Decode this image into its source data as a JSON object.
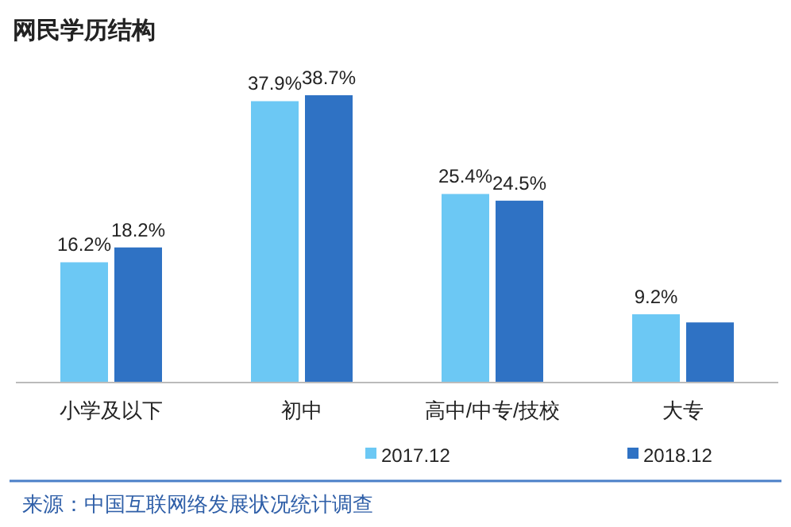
{
  "chart_data": {
    "type": "bar",
    "title": "网民学历结构",
    "categories": [
      "小学及以下",
      "初中",
      "高中/中专/技校",
      "大专"
    ],
    "series": [
      {
        "name": "2017.12",
        "color": "#6cc8f4",
        "values": [
          16.2,
          37.9,
          25.4,
          9.2
        ],
        "value_labels": [
          "16.2%",
          "37.9%",
          "25.4%",
          "9.2%"
        ]
      },
      {
        "name": "2018.12",
        "color": "#2f72c4",
        "values": [
          18.2,
          38.7,
          24.5,
          8.1
        ],
        "value_labels": [
          "18.2%",
          "38.7%",
          "24.5%",
          null
        ]
      }
    ],
    "tick_labels": "x",
    "legend": "bottom",
    "annotations": [
      "来源：中国互联网络发展状况统计调查"
    ]
  }
}
